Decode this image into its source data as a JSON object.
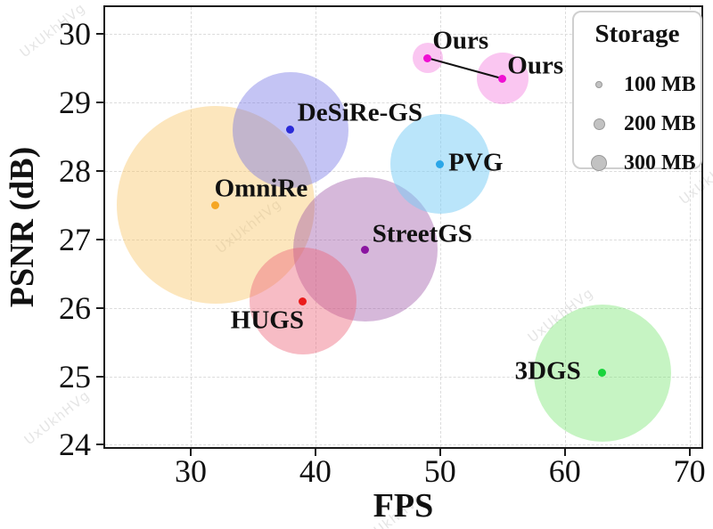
{
  "watermark": "UxUkhHVg",
  "chart_data": {
    "type": "scatter",
    "title": "",
    "xlabel": "FPS",
    "ylabel": "PSNR (dB)",
    "xlim": [
      23,
      71.1
    ],
    "ylim": [
      23.94,
      30.42
    ],
    "x_ticks": [
      30,
      40,
      50,
      60,
      70
    ],
    "y_ticks": [
      24,
      25,
      26,
      27,
      28,
      29,
      30
    ],
    "grid": "dashed",
    "legend": {
      "title": "Storage",
      "position": "upper right",
      "entries": [
        {
          "label": "100 MB",
          "marker_radius_px": 3
        },
        {
          "label": "200 MB",
          "marker_radius_px": 5.5
        },
        {
          "label": "300 MB",
          "marker_radius_px": 8
        }
      ]
    },
    "points": [
      {
        "name": "Ours",
        "fps": 49,
        "psnr": 29.65,
        "bubble_radius_px": 17,
        "bubble_color": "rgba(244,120,222,0.42)",
        "dot_color": "#ef0fd2",
        "label_offset": [
          37,
          -19
        ]
      },
      {
        "name": "Ours",
        "fps": 55,
        "psnr": 29.35,
        "bubble_radius_px": 29,
        "bubble_color": "rgba(244,120,222,0.42)",
        "dot_color": "#ef0fd2",
        "label_offset": [
          37,
          -14
        ]
      },
      {
        "name": "DeSiRe-GS",
        "fps": 38,
        "psnr": 28.6,
        "bubble_radius_px": 65,
        "bubble_color": "rgba(108,108,228,0.40)",
        "dot_color": "#2a2ad8",
        "label_offset": [
          78,
          -19
        ]
      },
      {
        "name": "PVG",
        "fps": 50,
        "psnr": 28.1,
        "bubble_radius_px": 56,
        "bubble_color": "rgba(118,203,246,0.50)",
        "dot_color": "#2aa6e8",
        "label_offset": [
          40,
          -1
        ]
      },
      {
        "name": "OmniRe",
        "fps": 32,
        "psnr": 27.5,
        "bubble_radius_px": 111,
        "bubble_color": "rgba(248,196,98,0.42)",
        "dot_color": "#f5a623",
        "label_offset": [
          51,
          -18
        ]
      },
      {
        "name": "StreetGS",
        "fps": 44,
        "psnr": 26.85,
        "bubble_radius_px": 81,
        "bubble_color": "rgba(152,78,162,0.40)",
        "dot_color": "#8a14a0",
        "label_offset": [
          64,
          -17
        ]
      },
      {
        "name": "HUGS",
        "fps": 39,
        "psnr": 26.1,
        "bubble_radius_px": 60,
        "bubble_color": "rgba(236,96,116,0.42)",
        "dot_color": "#ea1b1b",
        "label_offset": [
          -40,
          22
        ]
      },
      {
        "name": "3DGS",
        "fps": 63,
        "psnr": 25.05,
        "bubble_radius_px": 77,
        "bubble_color": "rgba(118,229,112,0.42)",
        "dot_color": "#19d43c",
        "label_offset": [
          -61,
          -2
        ]
      }
    ],
    "connector": {
      "from_index": 0,
      "to_index": 1,
      "color": "#111111"
    }
  }
}
